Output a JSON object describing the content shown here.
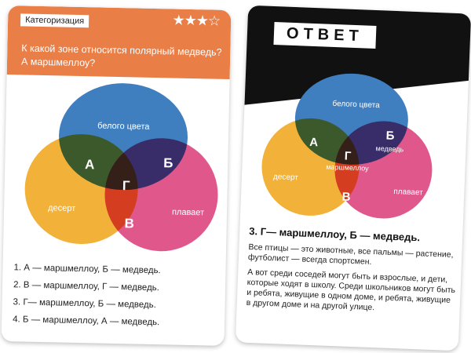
{
  "left_card": {
    "category": "Категоризация",
    "stars": "★★★☆",
    "difficulty": 3,
    "question": "К какой зоне относится полярный медведь? А маршмеллоу?",
    "venn": {
      "top": "белого цвета",
      "left": "десерт",
      "right": "плавает",
      "a": "А",
      "b": "Б",
      "g": "Г",
      "v": "В"
    },
    "options": [
      "1. А — маршмеллоу, Б — медведь.",
      "2. В — маршмеллоу, Г — медведь.",
      "3. Г— маршмеллоу, Б — медведь.",
      "4. Б — маршмеллоу, А — медведь."
    ]
  },
  "right_card": {
    "header": "ОТВЕТ",
    "venn": {
      "top": "белого цвета",
      "left": "десерт",
      "right": "плавает",
      "a": "А",
      "b": "Б",
      "g": "Г",
      "v": "В",
      "b_item": "медведь",
      "g_item": "маршмеллоу"
    },
    "answer_title": "3. Г— маршмеллоу, Б — медведь.",
    "paragraphs": [
      "Все птицы — это животные, все пальмы — растение, футболист — всегда спортсмен.",
      "А вот среди соседей могут быть и взрослые, и дети, которые ходят в школу. Среди школьников могут быть и ребята, живущие в одном доме, и ребята, живущие в другом доме и на другой улице."
    ]
  },
  "colors": {
    "orange": "#e97e47",
    "blue": "#3f7fc0",
    "yellow": "#f2b23a",
    "pink": "#e0578c"
  }
}
